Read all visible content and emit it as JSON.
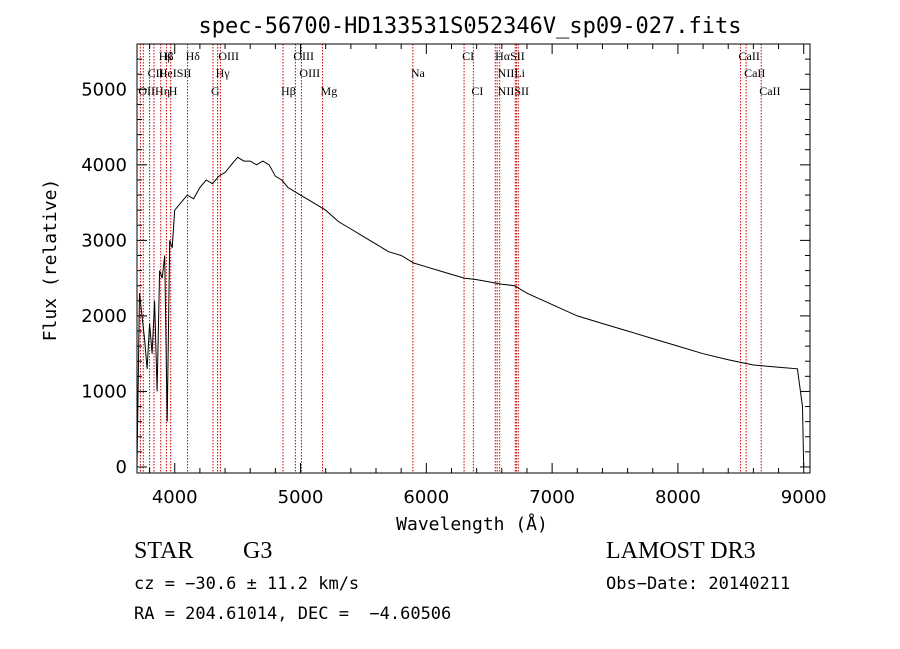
{
  "chart_data": {
    "type": "line",
    "title": "spec-56700-HD133531S052346V_sp09-027.fits",
    "xlabel": "Wavelength (Å)",
    "ylabel": "Flux (relative)",
    "xlim": [
      3700,
      9050
    ],
    "ylim": [
      -80,
      5600
    ],
    "xticks": [
      4000,
      5000,
      6000,
      7000,
      8000,
      9000
    ],
    "xtick_labels": [
      "4000",
      "5000",
      "6000",
      "7000",
      "8000",
      "9000"
    ],
    "yticks": [
      0,
      1000,
      2000,
      3000,
      4000,
      5000
    ],
    "ytick_labels": [
      "0",
      "1000",
      "2000",
      "3000",
      "4000",
      "5000"
    ],
    "grid": false,
    "series": [
      {
        "name": "flux",
        "x": [
          3700,
          3720,
          3740,
          3760,
          3780,
          3800,
          3820,
          3840,
          3860,
          3880,
          3900,
          3920,
          3940,
          3960,
          3980,
          4000,
          4050,
          4100,
          4150,
          4200,
          4250,
          4300,
          4350,
          4400,
          4450,
          4500,
          4550,
          4600,
          4650,
          4700,
          4750,
          4800,
          4850,
          4900,
          4950,
          5000,
          5100,
          5200,
          5300,
          5400,
          5500,
          5600,
          5700,
          5800,
          5900,
          6000,
          6100,
          6200,
          6300,
          6400,
          6500,
          6600,
          6700,
          6800,
          7000,
          7200,
          7400,
          7600,
          7800,
          8000,
          8200,
          8400,
          8600,
          8800,
          8950,
          8990,
          9000
        ],
        "y": [
          0,
          2300,
          2000,
          1700,
          1300,
          1900,
          1500,
          2200,
          1000,
          2600,
          2500,
          2800,
          600,
          3000,
          2900,
          3400,
          3500,
          3600,
          3550,
          3700,
          3800,
          3750,
          3850,
          3900,
          4000,
          4100,
          4050,
          4050,
          4000,
          4050,
          4000,
          3850,
          3800,
          3700,
          3650,
          3600,
          3500,
          3400,
          3250,
          3150,
          3050,
          2950,
          2850,
          2800,
          2700,
          2650,
          2600,
          2550,
          2500,
          2480,
          2450,
          2420,
          2400,
          2300,
          2150,
          2000,
          1900,
          1800,
          1700,
          1600,
          1500,
          1420,
          1350,
          1320,
          1300,
          800,
          0
        ]
      }
    ],
    "line_markers": [
      {
        "label": "Hβ",
        "x": 3889,
        "row": 1
      },
      {
        "label": "K",
        "x": 3934,
        "row": 1
      },
      {
        "label": "Hδ",
        "x": 4102,
        "row": 1
      },
      {
        "label": "OIII",
        "x": 4363,
        "row": 1
      },
      {
        "label": "OIII",
        "x": 4959,
        "row": 1
      },
      {
        "label": "CI",
        "x": 6300,
        "row": 1
      },
      {
        "label": "HαSII",
        "x": 6563,
        "row": 1
      },
      {
        "label": "CaII",
        "x": 8498,
        "row": 1
      },
      {
        "label": "CII",
        "x": 3800,
        "row": 2
      },
      {
        "label": "HeISII",
        "x": 3889,
        "row": 2
      },
      {
        "label": "Hγ",
        "x": 4341,
        "row": 2
      },
      {
        "label": "OIII",
        "x": 5007,
        "row": 2
      },
      {
        "label": "Na",
        "x": 5893,
        "row": 2
      },
      {
        "label": "NIILi",
        "x": 6583,
        "row": 2
      },
      {
        "label": "CaII",
        "x": 8542,
        "row": 2
      },
      {
        "label": "OIIHη",
        "x": 3727,
        "row": 3
      },
      {
        "label": "H",
        "x": 3968,
        "row": 3
      },
      {
        "label": "G",
        "x": 4304,
        "row": 3
      },
      {
        "label": "Hβ",
        "x": 4861,
        "row": 3
      },
      {
        "label": "Mg",
        "x": 5175,
        "row": 3
      },
      {
        "label": "CI",
        "x": 6374,
        "row": 3
      },
      {
        "label": "NIISII",
        "x": 6583,
        "row": 3
      },
      {
        "label": "CaII",
        "x": 8662,
        "row": 3
      }
    ],
    "marker_lines_x": [
      3727,
      3750,
      3800,
      3835,
      3889,
      3934,
      3968,
      4102,
      4304,
      4341,
      4363,
      4861,
      4959,
      5007,
      5175,
      5893,
      6300,
      6374,
      6548,
      6563,
      6583,
      6707,
      6716,
      6731,
      8498,
      8542,
      8662
    ],
    "colors": {
      "spectrum": "#000000",
      "marker": "#cc0000",
      "axes": "#000000"
    }
  },
  "info": {
    "object_type": "STAR",
    "subclass": "G3",
    "cz": "cz = −30.6 ± 11.2 km/s",
    "radec": "RA = 204.61014, DEC =  −4.60506",
    "survey": "LAMOST DR3",
    "obs_date": "Obs−Date: 20140211"
  }
}
